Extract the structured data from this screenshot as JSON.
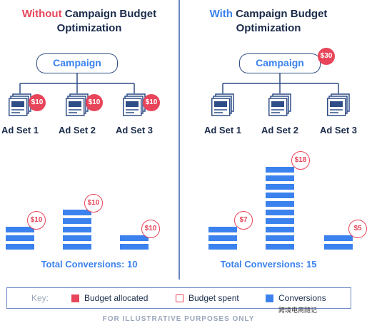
{
  "left": {
    "title_accent": "Without",
    "title_rest": " Campaign Budget",
    "title_line2": "Optimization",
    "campaign_label": "Campaign",
    "adsets": [
      {
        "label": "Ad Set 1",
        "budget": "$10"
      },
      {
        "label": "Ad Set 2",
        "budget": "$10"
      },
      {
        "label": "Ad Set 3",
        "budget": "$10"
      }
    ],
    "spent": [
      "$10",
      "$10",
      "$10"
    ],
    "conversions": [
      3,
      5,
      2
    ],
    "total": "Total Conversions: 10"
  },
  "right": {
    "title_accent": "With",
    "title_rest": " Campaign Budget",
    "title_line2": "Optimization",
    "campaign_label": "Campaign",
    "campaign_budget": "$30",
    "adsets": [
      {
        "label": "Ad Set 1"
      },
      {
        "label": "Ad Set 2"
      },
      {
        "label": "Ad Set 3"
      }
    ],
    "spent": [
      "$7",
      "$18",
      "$5"
    ],
    "conversions": [
      3,
      10,
      2
    ],
    "total": "Total Conversions: 15"
  },
  "key": {
    "title": "Key:",
    "items": [
      {
        "label": "Budget allocated",
        "swatch": "filled",
        "color": "#e8455a"
      },
      {
        "label": "Budget spent",
        "swatch": "outline",
        "color": "#e8455a"
      },
      {
        "label": "Conversions",
        "swatch": "filled",
        "color": "#3b82ee"
      }
    ]
  },
  "footer": "FOR ILLUSTRATIVE PURPOSES ONLY",
  "watermark": "跨境电商随记",
  "colors": {
    "red": "#e8455a",
    "blue": "#3b82ee",
    "navy": "#1a2b4a"
  }
}
